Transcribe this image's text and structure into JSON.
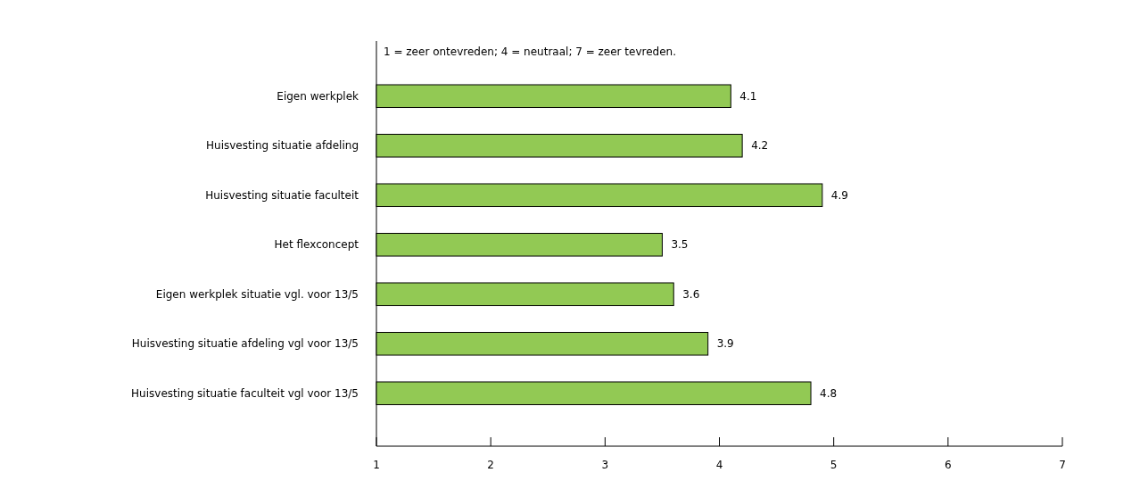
{
  "chart_data": {
    "type": "bar",
    "orientation": "horizontal",
    "annotations": [
      "1 = zeer ontevreden; 4 = neutraal; 7 = zeer tevreden."
    ],
    "categories": [
      "Eigen werkplek",
      "Huisvesting situatie afdeling",
      "Huisvesting situatie faculteit",
      "Het flexconcept",
      "Eigen werkplek situatie vgl. voor 13/5",
      "Huisvesting situatie afdeling vgl voor 13/5",
      "Huisvesting situatie faculteit vgl voor 13/5"
    ],
    "values": [
      4.1,
      4.2,
      4.9,
      3.5,
      3.6,
      3.9,
      4.8
    ],
    "color": "#92c954",
    "xlim": [
      1,
      7
    ],
    "xticks": [
      1,
      2,
      3,
      4,
      5,
      6,
      7
    ],
    "data_labels": true
  }
}
